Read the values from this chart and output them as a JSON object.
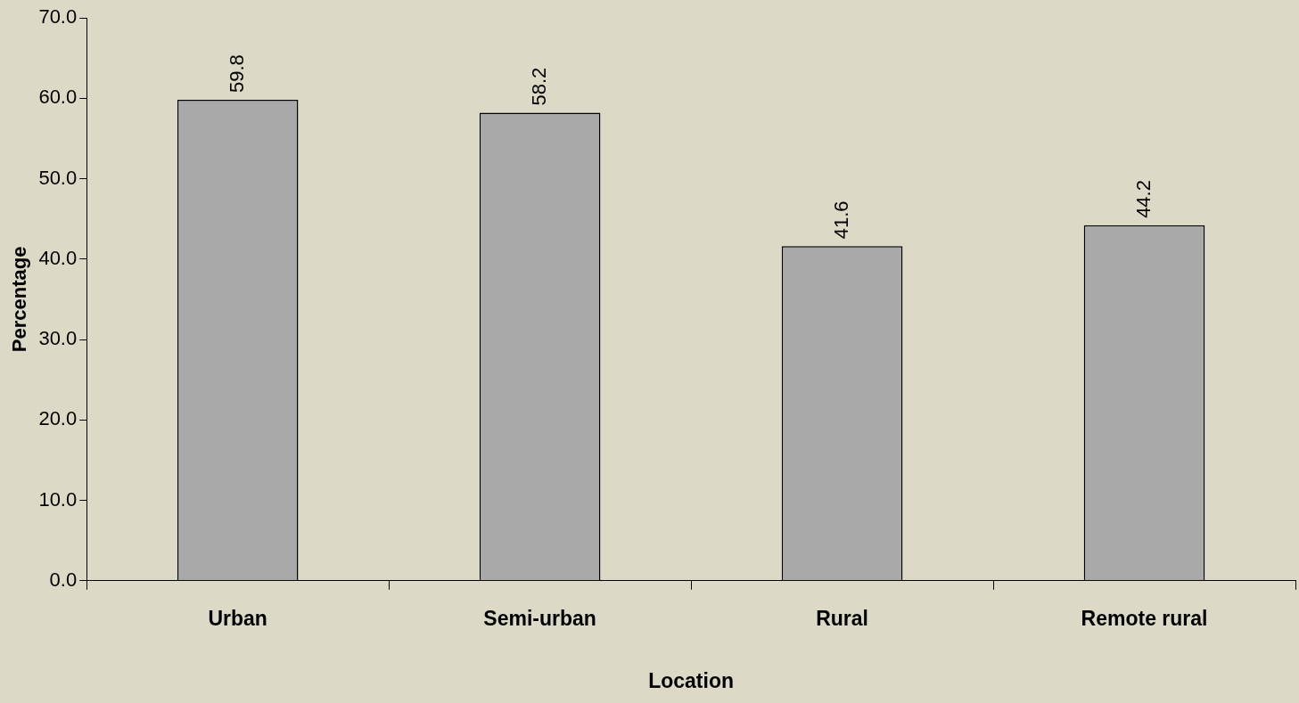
{
  "chart_data": {
    "type": "bar",
    "xlabel": "Location",
    "ylabel": "Percentage",
    "categories": [
      "Urban",
      "Semi-urban",
      "Rural",
      "Remote rural"
    ],
    "values": [
      59.8,
      58.2,
      41.6,
      44.2
    ],
    "color": "#a9a9a9",
    "ylim": [
      0,
      70
    ],
    "yticks": [
      {
        "value": 0,
        "label": "0.0"
      },
      {
        "value": 10,
        "label": "10.0"
      },
      {
        "value": 20,
        "label": "20.0"
      },
      {
        "value": 30,
        "label": "30.0"
      },
      {
        "value": 40,
        "label": "40.0"
      },
      {
        "value": 50,
        "label": "50.0"
      },
      {
        "value": 60,
        "label": "60.0"
      },
      {
        "value": 70,
        "label": "70.0"
      }
    ],
    "data_labels": true,
    "grid": false,
    "legend": false
  }
}
